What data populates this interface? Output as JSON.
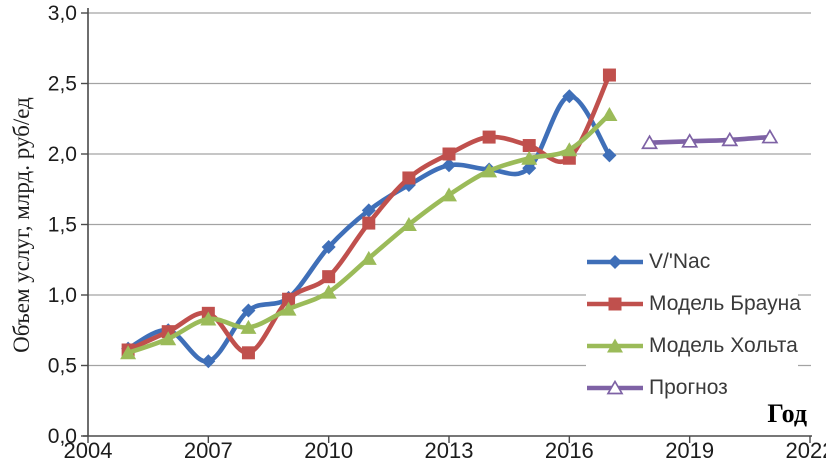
{
  "chart_data": {
    "type": "line",
    "title": "",
    "xlabel": "Год",
    "ylabel": "Объем услуг, млрд. руб/ед",
    "xlim": [
      2004,
      2022
    ],
    "ylim": [
      0.0,
      3.0
    ],
    "grid": "horizontal",
    "legend_position": "right-inside",
    "x_tick_values": [
      2004,
      2007,
      2010,
      2013,
      2016,
      2019,
      2022
    ],
    "x_tick_labels": [
      "2004",
      "2007",
      "2010",
      "2013",
      "2016",
      "2019",
      "2022"
    ],
    "y_tick_values": [
      0,
      0.5,
      1,
      1.5,
      2,
      2.5,
      3
    ],
    "y_tick_labels": [
      "0,0",
      "0,5",
      "1,0",
      "1,5",
      "2,0",
      "2,5",
      "3,0"
    ],
    "axis_color": "#4a4a4a",
    "grid_color": "#a3a3a3",
    "series": [
      {
        "name": "V/'Nac",
        "marker": "diamond",
        "color": "#3f6fb8",
        "x": [
          2005,
          2006,
          2007,
          2008,
          2009,
          2010,
          2011,
          2012,
          2013,
          2014,
          2015,
          2016,
          2017
        ],
        "values": [
          0.62,
          0.75,
          0.53,
          0.89,
          0.98,
          1.34,
          1.6,
          1.78,
          1.92,
          1.89,
          1.9,
          2.41,
          1.99
        ]
      },
      {
        "name": "Модель Брауна",
        "marker": "square",
        "color": "#c0504d",
        "x": [
          2005,
          2006,
          2007,
          2008,
          2009,
          2010,
          2011,
          2012,
          2013,
          2014,
          2015,
          2016,
          2017
        ],
        "values": [
          0.61,
          0.74,
          0.87,
          0.59,
          0.97,
          1.13,
          1.51,
          1.83,
          2.0,
          2.12,
          2.06,
          1.97,
          2.56
        ]
      },
      {
        "name": "Модель Хольта",
        "marker": "triangle",
        "color": "#9bbb59",
        "x": [
          2005,
          2006,
          2007,
          2008,
          2009,
          2010,
          2011,
          2012,
          2013,
          2014,
          2015,
          2016,
          2017
        ],
        "values": [
          0.59,
          0.69,
          0.83,
          0.77,
          0.9,
          1.02,
          1.26,
          1.5,
          1.71,
          1.88,
          1.97,
          2.03,
          2.28
        ]
      },
      {
        "name": "Прогноз",
        "marker": "open-triangle",
        "color": "#7e62a5",
        "x": [
          2018,
          2019,
          2020,
          2021
        ],
        "values": [
          2.08,
          2.09,
          2.1,
          2.12
        ]
      }
    ]
  }
}
